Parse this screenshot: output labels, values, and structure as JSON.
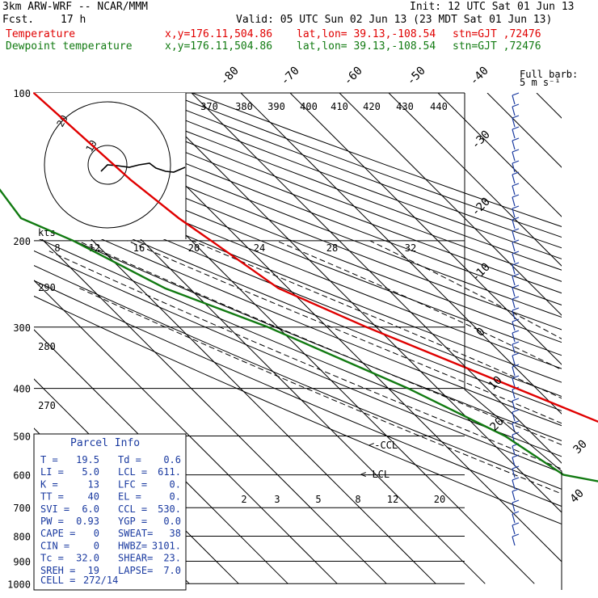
{
  "header": {
    "model": "3km ARW-WRF -- NCAR/MMM",
    "init": "Init: 12 UTC Sat 01 Jun 13",
    "fcst_label": "Fcst.",
    "fcst_hours": "17 h",
    "valid": "Valid: 05 UTC Sun 02 Jun 13 (23 MDT Sat 01 Jun 13)",
    "temp_line": {
      "name": "Temperature",
      "xy": "x,y=176.11,504.86",
      "latlon": "lat,lon= 39.13,-108.54",
      "stn": "stn=GJT ,72476"
    },
    "dew_line": {
      "name": "Dewpoint temperature",
      "xy": "x,y=176.11,504.86",
      "latlon": "lat,lon= 39.13,-108.54",
      "stn": "stn=GJT ,72476"
    },
    "barb_label": "Full barb:",
    "barb_unit": "5 m s⁻¹"
  },
  "colors": {
    "temperature": "#e00000",
    "dewpoint": "#117a11",
    "parcel": "#1a3aa0",
    "grid": "#000000"
  },
  "chart_data": {
    "type": "line",
    "chart_kind": "skew-T log-p sounding",
    "pressure_levels": [
      100,
      200,
      300,
      400,
      500,
      600,
      700,
      800,
      900,
      1000
    ],
    "pressure_labels": [
      "100",
      "200",
      "300",
      "400",
      "500",
      "600",
      "700",
      "800",
      "900",
      "1000"
    ],
    "isotherm_top_labels": [
      "-80",
      "-70",
      "-60",
      "-50",
      "-40"
    ],
    "isotherm_right_labels": [
      "-30",
      "-20",
      "-10",
      "0",
      "10",
      "20",
      "30",
      "40"
    ],
    "theta_labels": [
      "370",
      "380",
      "390",
      "400",
      "410",
      "420",
      "430",
      "440"
    ],
    "theta_left_labels": [
      "290",
      "280",
      "270"
    ],
    "mixing_ratio_labels": [
      "2",
      "3",
      "5",
      "8",
      "12",
      "20"
    ],
    "hodograph": {
      "unit": "kts",
      "ring_labels": [
        "10",
        "20"
      ],
      "speed_axis_labels": [
        "8",
        "12",
        "16",
        "20",
        "24",
        "28",
        "32"
      ]
    },
    "series": [
      {
        "name": "Temperature",
        "color": "#e00000",
        "pressure": [
          100,
          150,
          180,
          200,
          250,
          300,
          400,
          500,
          600,
          700,
          800,
          840
        ],
        "temp_c": [
          -62,
          -60,
          -58,
          -56,
          -52,
          -42,
          -24,
          -10,
          0,
          6,
          15,
          20
        ]
      },
      {
        "name": "Dewpoint temperature",
        "color": "#117a11",
        "pressure": [
          100,
          150,
          180,
          200,
          250,
          300,
          400,
          500,
          600,
          700,
          750,
          800,
          840
        ],
        "temp_c": [
          -88,
          -88,
          -90,
          -84,
          -75,
          -62,
          -46,
          -36,
          -32,
          -3,
          4,
          2,
          1
        ]
      }
    ],
    "ccl_markers": [
      "<-CCL",
      "<-LCL"
    ]
  },
  "parcel_info": {
    "title": "Parcel Info",
    "rows": [
      [
        {
          "label": "T   =",
          "value": "19.5"
        },
        {
          "label": "Td  =",
          "value": "0.6"
        }
      ],
      [
        {
          "label": "LI  =",
          "value": "5.0"
        },
        {
          "label": "LCL =",
          "value": "611."
        }
      ],
      [
        {
          "label": "K   =",
          "value": "13"
        },
        {
          "label": "LFC =",
          "value": "0."
        }
      ],
      [
        {
          "label": "TT  =",
          "value": "40"
        },
        {
          "label": "EL  =",
          "value": "0."
        }
      ],
      [
        {
          "label": "SVI =",
          "value": "6.0"
        },
        {
          "label": "CCL =",
          "value": "530."
        }
      ],
      [
        {
          "label": "PW  =",
          "value": "0.93"
        },
        {
          "label": "YGP =",
          "value": "0.0"
        }
      ],
      [
        {
          "label": "CAPE =",
          "value": "0"
        },
        {
          "label": "SWEAT=",
          "value": "38"
        }
      ],
      [
        {
          "label": "CIN  =",
          "value": "0"
        },
        {
          "label": "HWBZ=",
          "value": "3101."
        }
      ],
      [
        {
          "label": "Tc  =",
          "value": "32.0"
        },
        {
          "label": "SHEAR=",
          "value": "23."
        }
      ],
      [
        {
          "label": "SREH =",
          "value": "19"
        },
        {
          "label": "LAPSE=",
          "value": "7.0"
        }
      ]
    ],
    "cell_label": "CELL =",
    "cell_value": "272/14"
  }
}
